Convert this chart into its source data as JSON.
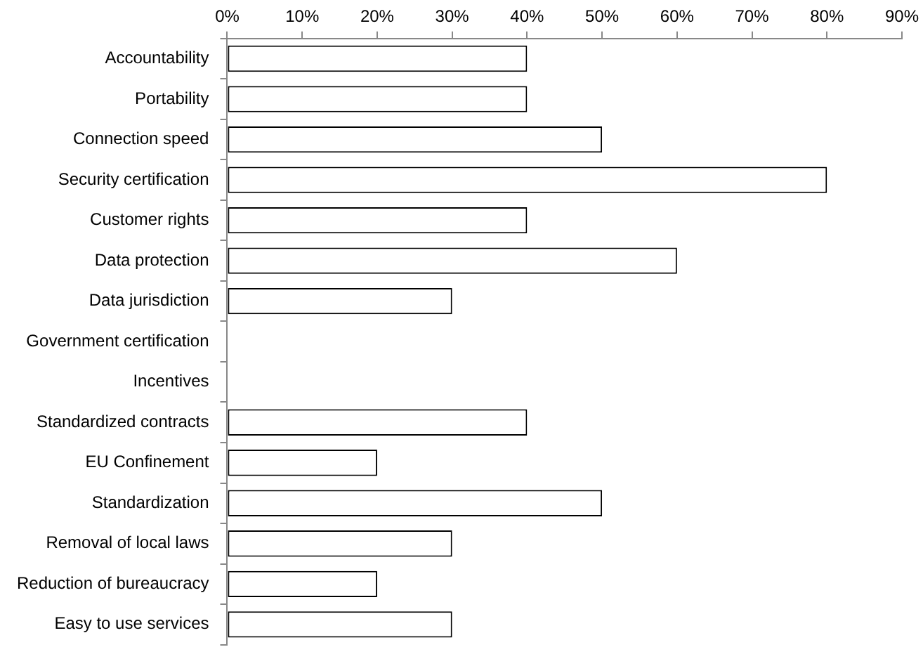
{
  "chart_data": {
    "type": "bar",
    "orientation": "horizontal",
    "categories": [
      "Accountability",
      "Portability",
      "Connection speed",
      "Security certification",
      "Customer rights",
      "Data protection",
      "Data jurisdiction",
      "Government certification",
      "Incentives",
      "Standardized contracts",
      "EU Confinement",
      "Standardization",
      "Removal of local laws",
      "Reduction of bureaucracy",
      "Easy to use services"
    ],
    "values": [
      40,
      40,
      50,
      80,
      40,
      60,
      30,
      0,
      0,
      40,
      20,
      50,
      30,
      20,
      30
    ],
    "color": "#ffffff",
    "xlim": [
      0,
      90
    ],
    "xticks": [
      {
        "value": 0,
        "label": "0%"
      },
      {
        "value": 10,
        "label": "10%"
      },
      {
        "value": 20,
        "label": "20%"
      },
      {
        "value": 30,
        "label": "30%"
      },
      {
        "value": 40,
        "label": "40%"
      },
      {
        "value": 50,
        "label": "50%"
      },
      {
        "value": 60,
        "label": "60%"
      },
      {
        "value": 70,
        "label": "70%"
      },
      {
        "value": 80,
        "label": "80%"
      },
      {
        "value": 90,
        "label": "90%"
      }
    ],
    "legend": false
  }
}
